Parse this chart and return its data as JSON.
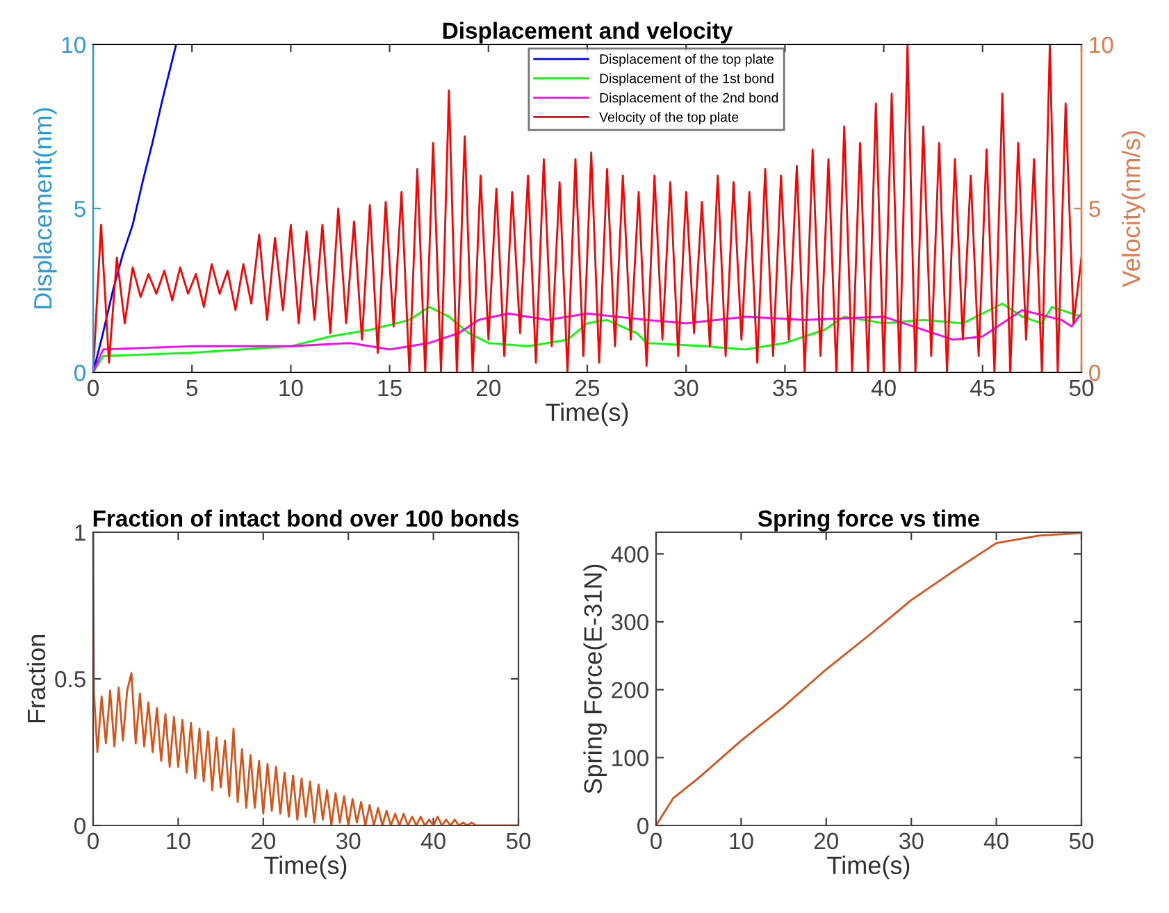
{
  "chart_data": [
    {
      "type": "line",
      "title": "Displacement and velocity",
      "xlabel": "Time(s)",
      "ylabel": "Displacement(nm)",
      "y2label": "Velocity(nm/s)",
      "xlim": [
        0,
        50
      ],
      "xticks": [
        0,
        5,
        10,
        15,
        20,
        25,
        30,
        35,
        40,
        45,
        50
      ],
      "ylim": [
        0,
        10
      ],
      "yticks": [
        0,
        5,
        10
      ],
      "y2lim": [
        0,
        10
      ],
      "y2ticks": [
        0,
        5,
        10
      ],
      "legend": "top",
      "grid": false,
      "series": [
        {
          "name": "Displacement of the top plate",
          "color": "#0000ff",
          "x": [
            0,
            0.5,
            1,
            1.5,
            2,
            2.5,
            3,
            3.5,
            4.2
          ],
          "values": [
            0,
            1.2,
            2.5,
            3.6,
            4.5,
            5.8,
            7.0,
            8.3,
            10
          ]
        },
        {
          "name": "Displacement of the 1st bond",
          "color": "#00ff00",
          "x": [
            0,
            0.5,
            5,
            10,
            12,
            14,
            16,
            17,
            18,
            19,
            20,
            22,
            24,
            25,
            26,
            27.5,
            28,
            31,
            33,
            35,
            37,
            38,
            40,
            42,
            44,
            46,
            47,
            48,
            48.5,
            50
          ],
          "values": [
            0,
            0.5,
            0.6,
            0.8,
            1.1,
            1.3,
            1.6,
            2.0,
            1.7,
            1.2,
            0.9,
            0.8,
            1.0,
            1.5,
            1.6,
            1.2,
            0.9,
            0.8,
            0.7,
            0.9,
            1.3,
            1.7,
            1.5,
            1.6,
            1.5,
            2.1,
            1.7,
            1.5,
            2.0,
            1.7
          ]
        },
        {
          "name": "Displacement of the 2nd bond",
          "color": "#ff00ff",
          "x": [
            0,
            0.5,
            5,
            10,
            13,
            15,
            17,
            18.5,
            19.5,
            21,
            23,
            25,
            28,
            30,
            33,
            36,
            40,
            42,
            43.5,
            45,
            46,
            47,
            49,
            49.5,
            50
          ],
          "values": [
            0,
            0.7,
            0.8,
            0.8,
            0.9,
            0.7,
            0.9,
            1.2,
            1.6,
            1.8,
            1.6,
            1.8,
            1.6,
            1.5,
            1.7,
            1.6,
            1.7,
            1.3,
            1.0,
            1.1,
            1.5,
            1.9,
            1.6,
            1.4,
            1.8
          ]
        },
        {
          "name": "Velocity of the top plate",
          "color": "#ff0000",
          "axis": "y2",
          "x": [
            0,
            0.4,
            0.8,
            1.2,
            1.6,
            2.0,
            2.4,
            2.8,
            3.2,
            3.6,
            4.0,
            4.4,
            4.8,
            5.2,
            5.6,
            6.0,
            6.4,
            6.8,
            7.2,
            7.6,
            8.0,
            8.4,
            8.8,
            9.2,
            9.6,
            10.0,
            10.4,
            10.8,
            11.2,
            11.6,
            12.0,
            12.4,
            12.8,
            13.2,
            13.6,
            14.0,
            14.4,
            14.8,
            15.2,
            15.6,
            16.0,
            16.4,
            16.8,
            17.2,
            17.6,
            18.0,
            18.4,
            18.8,
            19.2,
            19.6,
            20.0,
            20.4,
            20.8,
            21.2,
            21.6,
            22.0,
            22.4,
            22.8,
            23.2,
            23.6,
            24.0,
            24.4,
            24.8,
            25.2,
            25.6,
            26.0,
            26.4,
            26.8,
            27.2,
            27.6,
            28.0,
            28.4,
            28.8,
            29.2,
            29.6,
            30.0,
            30.4,
            30.8,
            31.2,
            31.6,
            32.0,
            32.4,
            32.8,
            33.2,
            33.6,
            34.0,
            34.4,
            34.8,
            35.2,
            35.6,
            36.0,
            36.4,
            36.8,
            37.2,
            37.6,
            38.0,
            38.4,
            38.8,
            39.2,
            39.6,
            40.0,
            40.4,
            40.8,
            41.2,
            41.6,
            42.0,
            42.4,
            42.8,
            43.2,
            43.6,
            44.0,
            44.4,
            44.8,
            45.2,
            45.6,
            46.0,
            46.4,
            46.8,
            47.2,
            47.6,
            48.0,
            48.4,
            48.8,
            49.2,
            49.6,
            50.0
          ],
          "values": [
            0,
            4.5,
            0.3,
            3.5,
            1.5,
            3.2,
            2.3,
            3.0,
            2.4,
            3.1,
            2.2,
            3.2,
            2.4,
            3.0,
            2.0,
            3.3,
            2.4,
            3.1,
            1.9,
            3.3,
            2.1,
            4.2,
            1.6,
            4.1,
            1.9,
            4.5,
            1.5,
            4.3,
            1.6,
            4.5,
            1.2,
            5.0,
            1.5,
            4.6,
            1.0,
            5.1,
            0.6,
            5.2,
            1.4,
            5.5,
            0,
            6.2,
            0,
            7.0,
            0,
            8.6,
            0,
            7.2,
            0,
            6.0,
            1.0,
            5.6,
            0.5,
            5.5,
            1.2,
            6.0,
            0.3,
            6.5,
            0.8,
            5.8,
            0,
            6.5,
            0.5,
            6.7,
            0.3,
            6.2,
            0.8,
            6.0,
            1.0,
            5.5,
            0.2,
            6.0,
            1.0,
            5.8,
            0.5,
            5.5,
            1.2,
            5.2,
            0.8,
            6.0,
            0.5,
            5.8,
            1.0,
            5.5,
            0.3,
            6.2,
            0.5,
            6.0,
            1.0,
            6.3,
            0,
            6.8,
            0.5,
            6.5,
            0,
            7.5,
            0,
            7.0,
            0,
            8.2,
            0,
            8.5,
            0,
            10,
            0,
            7.5,
            0.5,
            7.0,
            0,
            6.5,
            1.0,
            6.0,
            0.5,
            6.8,
            0,
            8.5,
            0,
            7.0,
            1.0,
            6.5,
            0,
            10,
            0,
            8.2,
            1.5,
            3.5
          ]
        }
      ]
    },
    {
      "type": "line",
      "title": "Fraction of intact bond over 100 bonds",
      "xlabel": "Time(s)",
      "ylabel": "Fraction",
      "xlim": [
        0,
        50
      ],
      "xticks": [
        0,
        10,
        20,
        30,
        40,
        50
      ],
      "ylim": [
        0,
        1
      ],
      "yticks": [
        0,
        0.5,
        1
      ],
      "series": [
        {
          "color": "#d95319",
          "x": [
            0,
            0.1,
            0.5,
            1,
            1.5,
            2,
            2.5,
            3,
            3.5,
            4,
            4.5,
            5,
            5.5,
            6,
            6.5,
            7,
            7.5,
            8,
            8.5,
            9,
            9.5,
            10,
            10.5,
            11,
            11.5,
            12,
            12.5,
            13,
            13.5,
            14,
            14.5,
            15,
            15.5,
            16,
            16.5,
            17,
            17.5,
            18,
            18.5,
            19,
            19.5,
            20,
            20.5,
            21,
            21.5,
            22,
            22.5,
            23,
            23.5,
            24,
            24.5,
            25,
            25.5,
            26,
            26.5,
            27,
            27.5,
            28,
            28.5,
            29,
            29.5,
            30,
            30.5,
            31,
            31.5,
            32,
            32.5,
            33,
            33.5,
            34,
            34.5,
            35,
            35.5,
            36,
            36.5,
            37,
            37.5,
            38,
            38.5,
            39,
            39.5,
            40,
            40.5,
            41,
            41.5,
            42,
            42.5,
            43,
            43.5,
            44,
            44.5,
            45,
            45.5,
            50
          ],
          "values": [
            1,
            0.45,
            0.25,
            0.44,
            0.28,
            0.46,
            0.27,
            0.47,
            0.29,
            0.46,
            0.52,
            0.28,
            0.45,
            0.27,
            0.42,
            0.25,
            0.4,
            0.22,
            0.38,
            0.2,
            0.37,
            0.2,
            0.36,
            0.18,
            0.35,
            0.16,
            0.33,
            0.15,
            0.32,
            0.12,
            0.3,
            0.13,
            0.29,
            0.1,
            0.33,
            0.08,
            0.26,
            0.06,
            0.24,
            0.06,
            0.22,
            0.04,
            0.21,
            0.05,
            0.2,
            0.04,
            0.18,
            0.03,
            0.17,
            0.02,
            0.16,
            0.03,
            0.15,
            0.01,
            0.14,
            0.02,
            0.12,
            0,
            0.11,
            0.01,
            0.1,
            0,
            0.09,
            0.01,
            0.08,
            0,
            0.07,
            0,
            0.06,
            0,
            0.05,
            0,
            0.04,
            0,
            0.04,
            0,
            0.03,
            0,
            0.03,
            0,
            0.02,
            0,
            0.03,
            0,
            0.02,
            0,
            0.02,
            0,
            0.01,
            0,
            0.01,
            0,
            0,
            0
          ]
        }
      ]
    },
    {
      "type": "line",
      "title": "Spring force vs time",
      "xlabel": "Time(s)",
      "ylabel": "Spring Force(E-31N)",
      "xlim": [
        0,
        50
      ],
      "xticks": [
        0,
        10,
        20,
        30,
        40,
        50
      ],
      "ylim": [
        0,
        432
      ],
      "yticks": [
        0,
        100,
        200,
        300,
        400
      ],
      "series": [
        {
          "color": "#d95319",
          "x": [
            0,
            0.5,
            1,
            2,
            5,
            10,
            15,
            20,
            25,
            30,
            35,
            40,
            45,
            50
          ],
          "values": [
            0,
            10,
            20,
            40,
            70,
            125,
            175,
            230,
            280,
            332,
            375,
            416,
            427,
            431
          ]
        }
      ]
    }
  ]
}
